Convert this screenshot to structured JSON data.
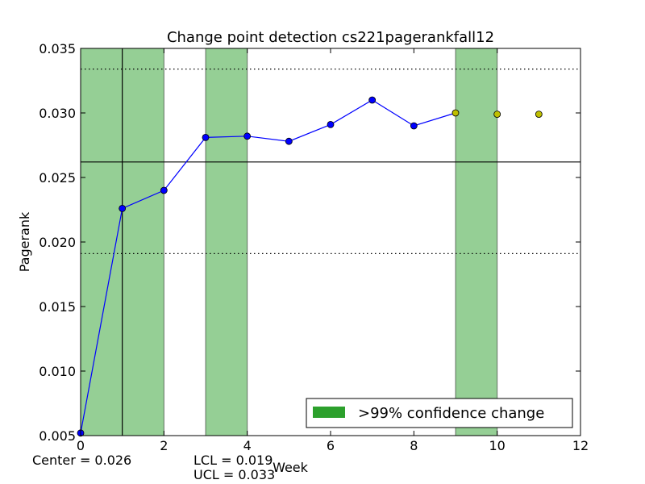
{
  "chart_data": {
    "type": "line",
    "title": "Change point detection cs221pagerankfall12",
    "xlabel": "Week",
    "ylabel": "Pagerank",
    "xlim": [
      0,
      12
    ],
    "ylim": [
      0.005,
      0.035
    ],
    "xticks": [
      0,
      2,
      4,
      6,
      8,
      10,
      12
    ],
    "xtick_labels": [
      "0",
      "2",
      "4",
      "6",
      "8",
      "10",
      "12"
    ],
    "yticks": [
      0.005,
      0.01,
      0.015,
      0.02,
      0.025,
      0.03,
      0.035
    ],
    "ytick_labels": [
      "0.005",
      "0.010",
      "0.015",
      "0.020",
      "0.025",
      "0.030",
      "0.035"
    ],
    "grid": false,
    "series": [
      {
        "color": "#0000ff",
        "x": [
          0,
          1,
          2,
          3,
          4,
          5,
          6,
          7,
          8,
          9,
          10,
          11
        ],
        "y": [
          0.0052,
          0.0226,
          0.024,
          0.0281,
          0.0282,
          0.0278,
          0.0291,
          0.031,
          0.029,
          0.03,
          0.0299,
          0.0299
        ],
        "line_until_x": 9,
        "marker_colors": [
          "#0000ff",
          "#0000ff",
          "#0000ff",
          "#0000ff",
          "#0000ff",
          "#0000ff",
          "#0000ff",
          "#0000ff",
          "#0000ff",
          "#bfbf00",
          "#bfbf00",
          "#bfbf00"
        ]
      }
    ],
    "change_regions": [
      [
        0,
        1
      ],
      [
        1,
        2
      ],
      [
        3,
        4
      ],
      [
        9,
        10
      ]
    ],
    "region_color": "#2ca02c",
    "vertical_lines": [
      1
    ],
    "center_line": 0.0262,
    "control_limits": [
      0.0191,
      0.0334
    ],
    "legend": {
      "label": ">99% confidence change",
      "placement": "lower-right"
    },
    "stats": {
      "center": "Center = 0.026",
      "lcl": "LCL = 0.019",
      "ucl": "UCL = 0.033"
    }
  }
}
